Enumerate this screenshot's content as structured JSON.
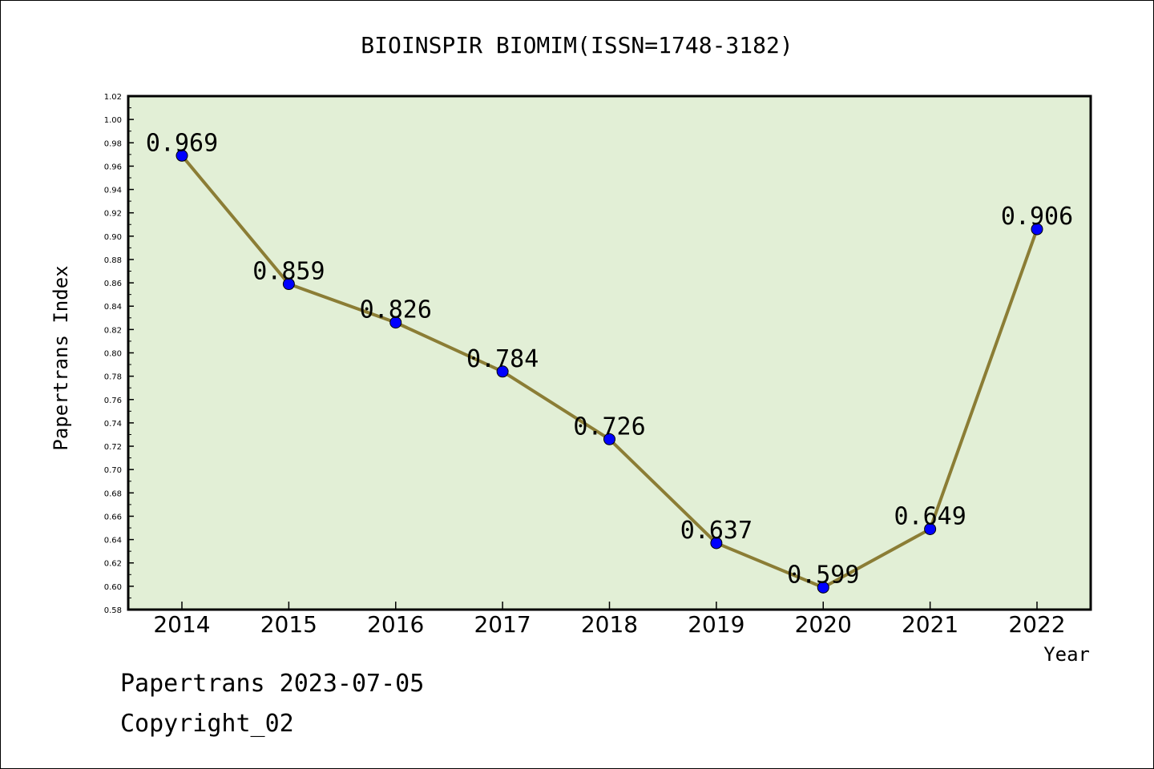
{
  "chart_data": {
    "type": "line",
    "title": "BIOINSPIR BIOMIM(ISSN=1748-3182)",
    "xlabel": "Year",
    "ylabel": "Papertrans Index",
    "categories": [
      "2014",
      "2015",
      "2016",
      "2017",
      "2018",
      "2019",
      "2020",
      "2021",
      "2022"
    ],
    "series": [
      {
        "values": [
          0.969,
          0.859,
          0.826,
          0.784,
          0.726,
          0.637,
          0.599,
          0.649,
          0.906
        ],
        "labels": [
          "0.969",
          "0.859",
          "0.826",
          "0.784",
          "0.726",
          "0.637",
          "0.599",
          "0.649",
          "0.906"
        ],
        "line_color": "#8b7d35",
        "marker_color": "#0000ff"
      }
    ],
    "ylim": [
      0.58,
      1.02
    ],
    "yticks": [
      "0.58",
      "0.60",
      "0.62",
      "0.64",
      "0.66",
      "0.68",
      "0.70",
      "0.72",
      "0.74",
      "0.76",
      "0.78",
      "0.80",
      "0.82",
      "0.84",
      "0.86",
      "0.88",
      "0.90",
      "0.92",
      "0.94",
      "0.96",
      "0.98",
      "1.00",
      "1.02"
    ],
    "plot_background": "#e2efd6",
    "grid": false,
    "legend": "none"
  },
  "footer": {
    "line1": "Papertrans 2023-07-05",
    "line2": "Copyright_02"
  }
}
